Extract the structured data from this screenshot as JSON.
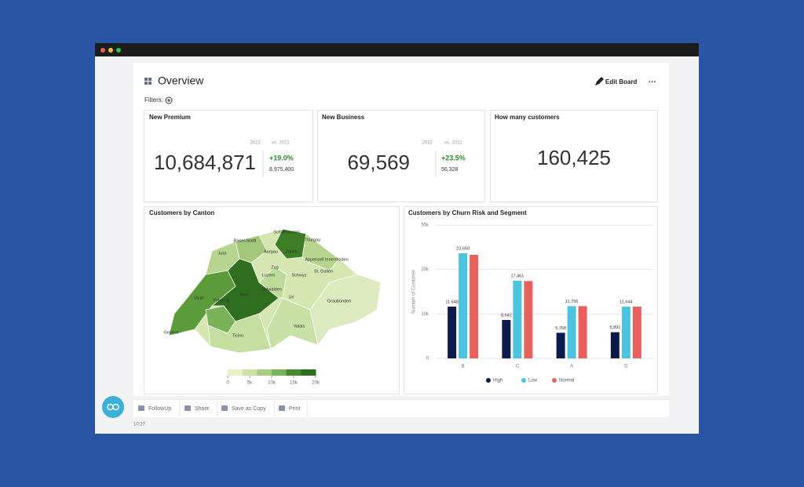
{
  "header": {
    "title": "Overview",
    "edit": "Edit Board",
    "filters": "Filters:"
  },
  "kpis": [
    {
      "title": "New Premium",
      "year": "2022",
      "vs": "vs. 2021",
      "value": "10,684,871",
      "change": "+19.0%",
      "previous": "8,975,400"
    },
    {
      "title": "New Business",
      "year": "2022",
      "vs": "vs. 2021",
      "value": "69,569",
      "change": "+23.5%",
      "previous": "56,328"
    },
    {
      "title": "How many customers",
      "value": "160,425"
    }
  ],
  "map": {
    "title": "Customers by Canton",
    "labels": [
      "Schaffhausen",
      "Basel-Stadt",
      "Thurgau",
      "Aargau",
      "Zürich",
      "Jura",
      "Appenzell Innerrhoden",
      "Zug",
      "St. Gallen",
      "Luzern",
      "Schwyz",
      "Nidwalden",
      "Bern",
      "Fribourg",
      "Uri",
      "Graubünden",
      "Vaud",
      "Valais",
      "Ticino",
      "Genève"
    ],
    "scale_ticks": [
      0,
      {
        "value": 5000,
        "label": "5k"
      },
      {
        "value": 10000,
        "label": "10k"
      },
      {
        "value": 15000,
        "label": "15k"
      },
      {
        "value": 20000,
        "label": "20k"
      }
    ],
    "scale_lim": [
      0,
      20000
    ]
  },
  "chart_data": {
    "type": "bar",
    "title": "Customers by Churn Risk and Segment",
    "y_label": "Number of Customer",
    "categories": [
      "B",
      "C",
      "A",
      "D"
    ],
    "series": [
      {
        "name": "High",
        "color": "#0d1b4b",
        "values": [
          11648,
          8642,
          5768,
          5891
        ],
        "value_labels": [
          "11,648",
          "8,642",
          "5,768",
          "5,891"
        ]
      },
      {
        "name": "Low",
        "color": "#4ec3e0",
        "values": [
          23650,
          17461,
          11756,
          11644
        ],
        "value_labels": [
          "23,650",
          "17,461",
          "11,756",
          "11,644"
        ]
      },
      {
        "name": "Normal",
        "color": "#e8605c",
        "values": [
          23300,
          17400,
          11756,
          11644
        ]
      }
    ],
    "ylim": [
      0,
      30000
    ],
    "yticks": [
      0,
      {
        "value": 10000,
        "label": "10k"
      },
      {
        "value": 20000,
        "label": "20k"
      },
      {
        "value": 30000,
        "label": "30k"
      }
    ],
    "grid": true
  },
  "toolbar": [
    "FollowUp",
    "Share",
    "Save as Copy",
    "Print"
  ],
  "time": "10:27"
}
